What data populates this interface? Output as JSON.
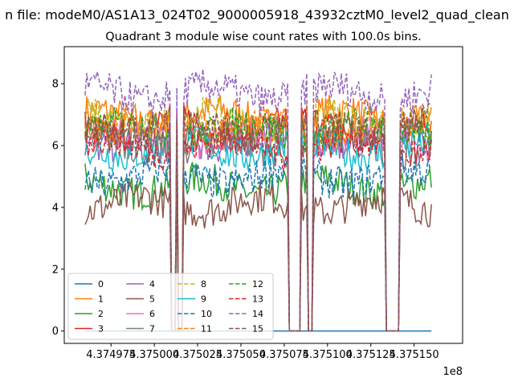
{
  "figure": {
    "suptitle": "n file: modeM0/AS1A13_024T02_9000005918_43932cztM0_level2_quad_clean",
    "title": "Quadrant 3 module wise count rates with 100.0s bins.",
    "offset_text": "1e8"
  },
  "chart_data": {
    "type": "line",
    "title": "Quadrant 3 module wise count rates with 100.0s bins.",
    "xlabel": "",
    "ylabel": "",
    "x_offset_multiplier": 100000000,
    "xlim": [
      4.374948,
      4.375178
    ],
    "ylim": [
      -0.4,
      9.2
    ],
    "x_range": [
      4.37496,
      4.37516
    ],
    "x_ticks": [
      4.374975,
      4.375,
      4.375025,
      4.37505,
      4.375075,
      4.3751,
      4.375125,
      4.37515
    ],
    "x_tick_labels": [
      "4.374975",
      "4.375000",
      "4.375025",
      "4.375050",
      "4.375075",
      "4.375100",
      "4.375125",
      "4.375150"
    ],
    "y_ticks": [
      0,
      2,
      4,
      6,
      8
    ],
    "y_tick_labels": [
      "0",
      "2",
      "4",
      "6",
      "8"
    ],
    "grid": false,
    "legend_position": "lower-left",
    "legend_columns": 4,
    "gaps": [
      [
        4.37501,
        4.375012
      ],
      [
        4.375014,
        4.375016
      ],
      [
        4.375078,
        4.375084
      ],
      [
        4.375089,
        4.375091
      ],
      [
        4.375134,
        4.375141
      ]
    ],
    "series": [
      {
        "name": "0",
        "color": "#1f77b4",
        "dash": "solid",
        "level": 0.0
      },
      {
        "name": "1",
        "color": "#ff7f0e",
        "dash": "solid",
        "level": 6.9
      },
      {
        "name": "2",
        "color": "#2ca02c",
        "dash": "solid",
        "level": 4.7
      },
      {
        "name": "3",
        "color": "#d62728",
        "dash": "solid",
        "level": 6.6
      },
      {
        "name": "4",
        "color": "#9467bd",
        "dash": "solid",
        "level": 6.2
      },
      {
        "name": "5",
        "color": "#8c564b",
        "dash": "solid",
        "level": 4.1
      },
      {
        "name": "6",
        "color": "#e377c2",
        "dash": "solid",
        "level": 6.2
      },
      {
        "name": "7",
        "color": "#7f7f7f",
        "dash": "solid",
        "level": 6.0
      },
      {
        "name": "8",
        "color": "#bcbd22",
        "dash": "dashed",
        "level": 6.8
      },
      {
        "name": "9",
        "color": "#17becf",
        "dash": "solid",
        "level": 5.9
      },
      {
        "name": "10",
        "color": "#1f77b4",
        "dash": "dashed",
        "level": 5.0
      },
      {
        "name": "11",
        "color": "#ff7f0e",
        "dash": "dashed",
        "level": 6.6
      },
      {
        "name": "12",
        "color": "#2ca02c",
        "dash": "dashed",
        "level": 6.5
      },
      {
        "name": "13",
        "color": "#d62728",
        "dash": "dashed",
        "level": 6.0
      },
      {
        "name": "14",
        "color": "#9467bd",
        "dash": "dashed",
        "level": 7.7
      },
      {
        "name": "15",
        "color": "#8c564b",
        "dash": "dashed",
        "level": 6.6
      }
    ]
  }
}
